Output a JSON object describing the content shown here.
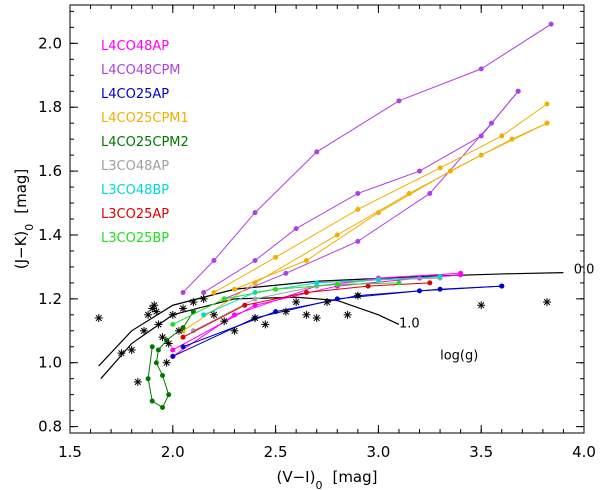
{
  "chart_data": {
    "type": "line",
    "xlabel": "(V−I)",
    "xlabel_sub": "0",
    "xlabel_unit": "[mag]",
    "ylabel": "(J−K)",
    "ylabel_sub": "0",
    "ylabel_unit": "[mag]",
    "xlim": [
      1.5,
      4.0
    ],
    "ylim": [
      0.78,
      2.12
    ],
    "xticks": [
      1.5,
      2.0,
      2.5,
      3.0,
      3.5,
      4.0
    ],
    "xtick_labels": [
      "1.5",
      "2.0",
      "2.5",
      "3.0",
      "3.5",
      "4.0"
    ],
    "yticks": [
      0.8,
      1.0,
      1.2,
      1.4,
      1.6,
      1.8,
      2.0
    ],
    "ytick_labels": [
      "0.8",
      "1.0",
      "1.2",
      "1.4",
      "1.6",
      "1.8",
      "2.0"
    ],
    "legend": [
      {
        "label": "L4CO48AP",
        "color": "#ff00ff"
      },
      {
        "label": "L4CO48CPM",
        "color": "#b040e0"
      },
      {
        "label": "L4CO25AP",
        "color": "#0000cc"
      },
      {
        "label": "L4CO25CPM1",
        "color": "#f0b000"
      },
      {
        "label": "L4CO25CPM2",
        "color": "#007800"
      },
      {
        "label": "L3CO48AP",
        "color": "#a0a0a0"
      },
      {
        "label": "L3CO48BP",
        "color": "#00d8d8"
      },
      {
        "label": "L3CO25AP",
        "color": "#e00000"
      },
      {
        "label": "L3CO25BP",
        "color": "#20e020"
      }
    ],
    "annotations": [
      {
        "text": "0.0",
        "x": 3.95,
        "y": 1.28
      },
      {
        "text": "1.0",
        "x": 3.1,
        "y": 1.11
      },
      {
        "text": "log(g)",
        "x": 3.3,
        "y": 1.01
      }
    ],
    "reference_curves": [
      {
        "name": "log g 0.0",
        "x": [
          1.64,
          1.8,
          2.0,
          2.3,
          2.7,
          3.2,
          3.6,
          3.9
        ],
        "y": [
          0.99,
          1.1,
          1.18,
          1.23,
          1.255,
          1.27,
          1.278,
          1.282
        ]
      },
      {
        "name": "log g 1.0",
        "x": [
          1.65,
          1.8,
          2.0,
          2.3,
          2.6,
          2.8,
          3.0,
          3.1
        ],
        "y": [
          0.95,
          1.06,
          1.15,
          1.2,
          1.205,
          1.195,
          1.15,
          1.12
        ]
      }
    ],
    "series": [
      {
        "name": "L4CO48CPM",
        "color": "#b040e0",
        "tracks": [
          {
            "x": [
              2.05,
              2.2,
              2.4,
              2.7,
              3.1,
              3.5,
              3.84
            ],
            "y": [
              1.22,
              1.32,
              1.47,
              1.66,
              1.82,
              1.92,
              2.06
            ]
          },
          {
            "x": [
              2.15,
              2.4,
              2.6,
              2.9,
              3.2,
              3.5,
              3.68
            ],
            "y": [
              1.22,
              1.32,
              1.42,
              1.53,
              1.6,
              1.71,
              1.85
            ]
          },
          {
            "x": [
              2.25,
              2.55,
              2.9,
              3.25,
              3.55,
              3.68
            ],
            "y": [
              1.2,
              1.28,
              1.38,
              1.53,
              1.75,
              1.85
            ]
          }
        ]
      },
      {
        "name": "L4CO25CPM1",
        "color": "#f0b000",
        "tracks": [
          {
            "x": [
              2.2,
              2.5,
              2.9,
              3.3,
              3.6,
              3.82
            ],
            "y": [
              1.22,
              1.33,
              1.48,
              1.61,
              1.71,
              1.81
            ]
          },
          {
            "x": [
              2.3,
              2.65,
              3.0,
              3.35,
              3.65,
              3.82
            ],
            "y": [
              1.23,
              1.32,
              1.47,
              1.6,
              1.7,
              1.75
            ]
          },
          {
            "x": [
              2.05,
              2.4,
              2.8,
              3.15,
              3.5,
              3.82
            ],
            "y": [
              1.1,
              1.25,
              1.4,
              1.53,
              1.65,
              1.75
            ]
          }
        ]
      },
      {
        "name": "L4CO48AP",
        "color": "#ff00ff",
        "tracks": [
          {
            "x": [
              2.0,
              2.3,
              2.7,
              3.0,
              3.4
            ],
            "y": [
              1.02,
              1.15,
              1.24,
              1.265,
              1.28
            ]
          },
          {
            "x": [
              2.0,
              2.4,
              2.8,
              3.2,
              3.4
            ],
            "y": [
              1.04,
              1.18,
              1.24,
              1.265,
              1.275
            ]
          }
        ]
      },
      {
        "name": "L4CO25AP",
        "color": "#0000cc",
        "tracks": [
          {
            "x": [
              2.0,
              2.4,
              2.8,
              3.2,
              3.6
            ],
            "y": [
              1.02,
              1.14,
              1.2,
              1.225,
              1.24
            ]
          },
          {
            "x": [
              2.05,
              2.5,
              2.9,
              3.3,
              3.6
            ],
            "y": [
              1.05,
              1.16,
              1.21,
              1.23,
              1.24
            ]
          }
        ]
      },
      {
        "name": "L4CO25CPM2",
        "color": "#007800",
        "tracks": [
          {
            "x": [
              1.9,
              1.88,
              1.9,
              1.95,
              1.98,
              1.95,
              1.92,
              1.93,
              1.97,
              2.05,
              2.1
            ],
            "y": [
              1.05,
              0.95,
              0.88,
              0.86,
              0.9,
              0.96,
              1.0,
              1.04,
              1.07,
              1.11,
              1.16
            ]
          }
        ]
      },
      {
        "name": "L3CO48AP",
        "color": "#a0a0a0",
        "tracks": [
          {
            "x": [
              2.1,
              2.4,
              2.7,
              3.0,
              3.3
            ],
            "y": [
              1.1,
              1.2,
              1.24,
              1.26,
              1.265
            ]
          }
        ]
      },
      {
        "name": "L3CO48BP",
        "color": "#00d8d8",
        "tracks": [
          {
            "x": [
              2.15,
              2.4,
              2.7,
              3.0,
              3.3
            ],
            "y": [
              1.15,
              1.22,
              1.25,
              1.26,
              1.27
            ]
          }
        ]
      },
      {
        "name": "L3CO25AP",
        "color": "#e00000",
        "tracks": [
          {
            "x": [
              2.05,
              2.35,
              2.65,
              2.95,
              3.25
            ],
            "y": [
              1.08,
              1.18,
              1.22,
              1.24,
              1.25
            ]
          }
        ]
      },
      {
        "name": "L3CO25BP",
        "color": "#20e020",
        "tracks": [
          {
            "x": [
              2.0,
              2.25,
              2.5,
              2.8,
              3.1
            ],
            "y": [
              1.12,
              1.2,
              1.23,
              1.245,
              1.25
            ]
          }
        ]
      }
    ],
    "observed_points": {
      "marker": "asterisk",
      "color": "#000000",
      "x": [
        1.64,
        1.75,
        1.8,
        1.83,
        1.86,
        1.88,
        1.9,
        1.91,
        1.92,
        1.93,
        1.95,
        1.97,
        2.0,
        2.05,
        2.1,
        2.15,
        2.2,
        2.25,
        2.3,
        2.4,
        2.45,
        2.55,
        2.6,
        2.65,
        2.7,
        2.75,
        2.85,
        2.9,
        3.5,
        3.82,
        1.98,
        2.03
      ],
      "y": [
        1.14,
        1.03,
        1.04,
        0.94,
        1.1,
        1.15,
        1.17,
        1.18,
        1.16,
        1.12,
        1.08,
        1.0,
        1.15,
        1.17,
        1.19,
        1.2,
        1.15,
        1.13,
        1.1,
        1.14,
        1.12,
        1.16,
        1.19,
        1.15,
        1.14,
        1.19,
        1.15,
        1.21,
        1.18,
        1.19,
        1.06,
        1.1
      ]
    }
  }
}
